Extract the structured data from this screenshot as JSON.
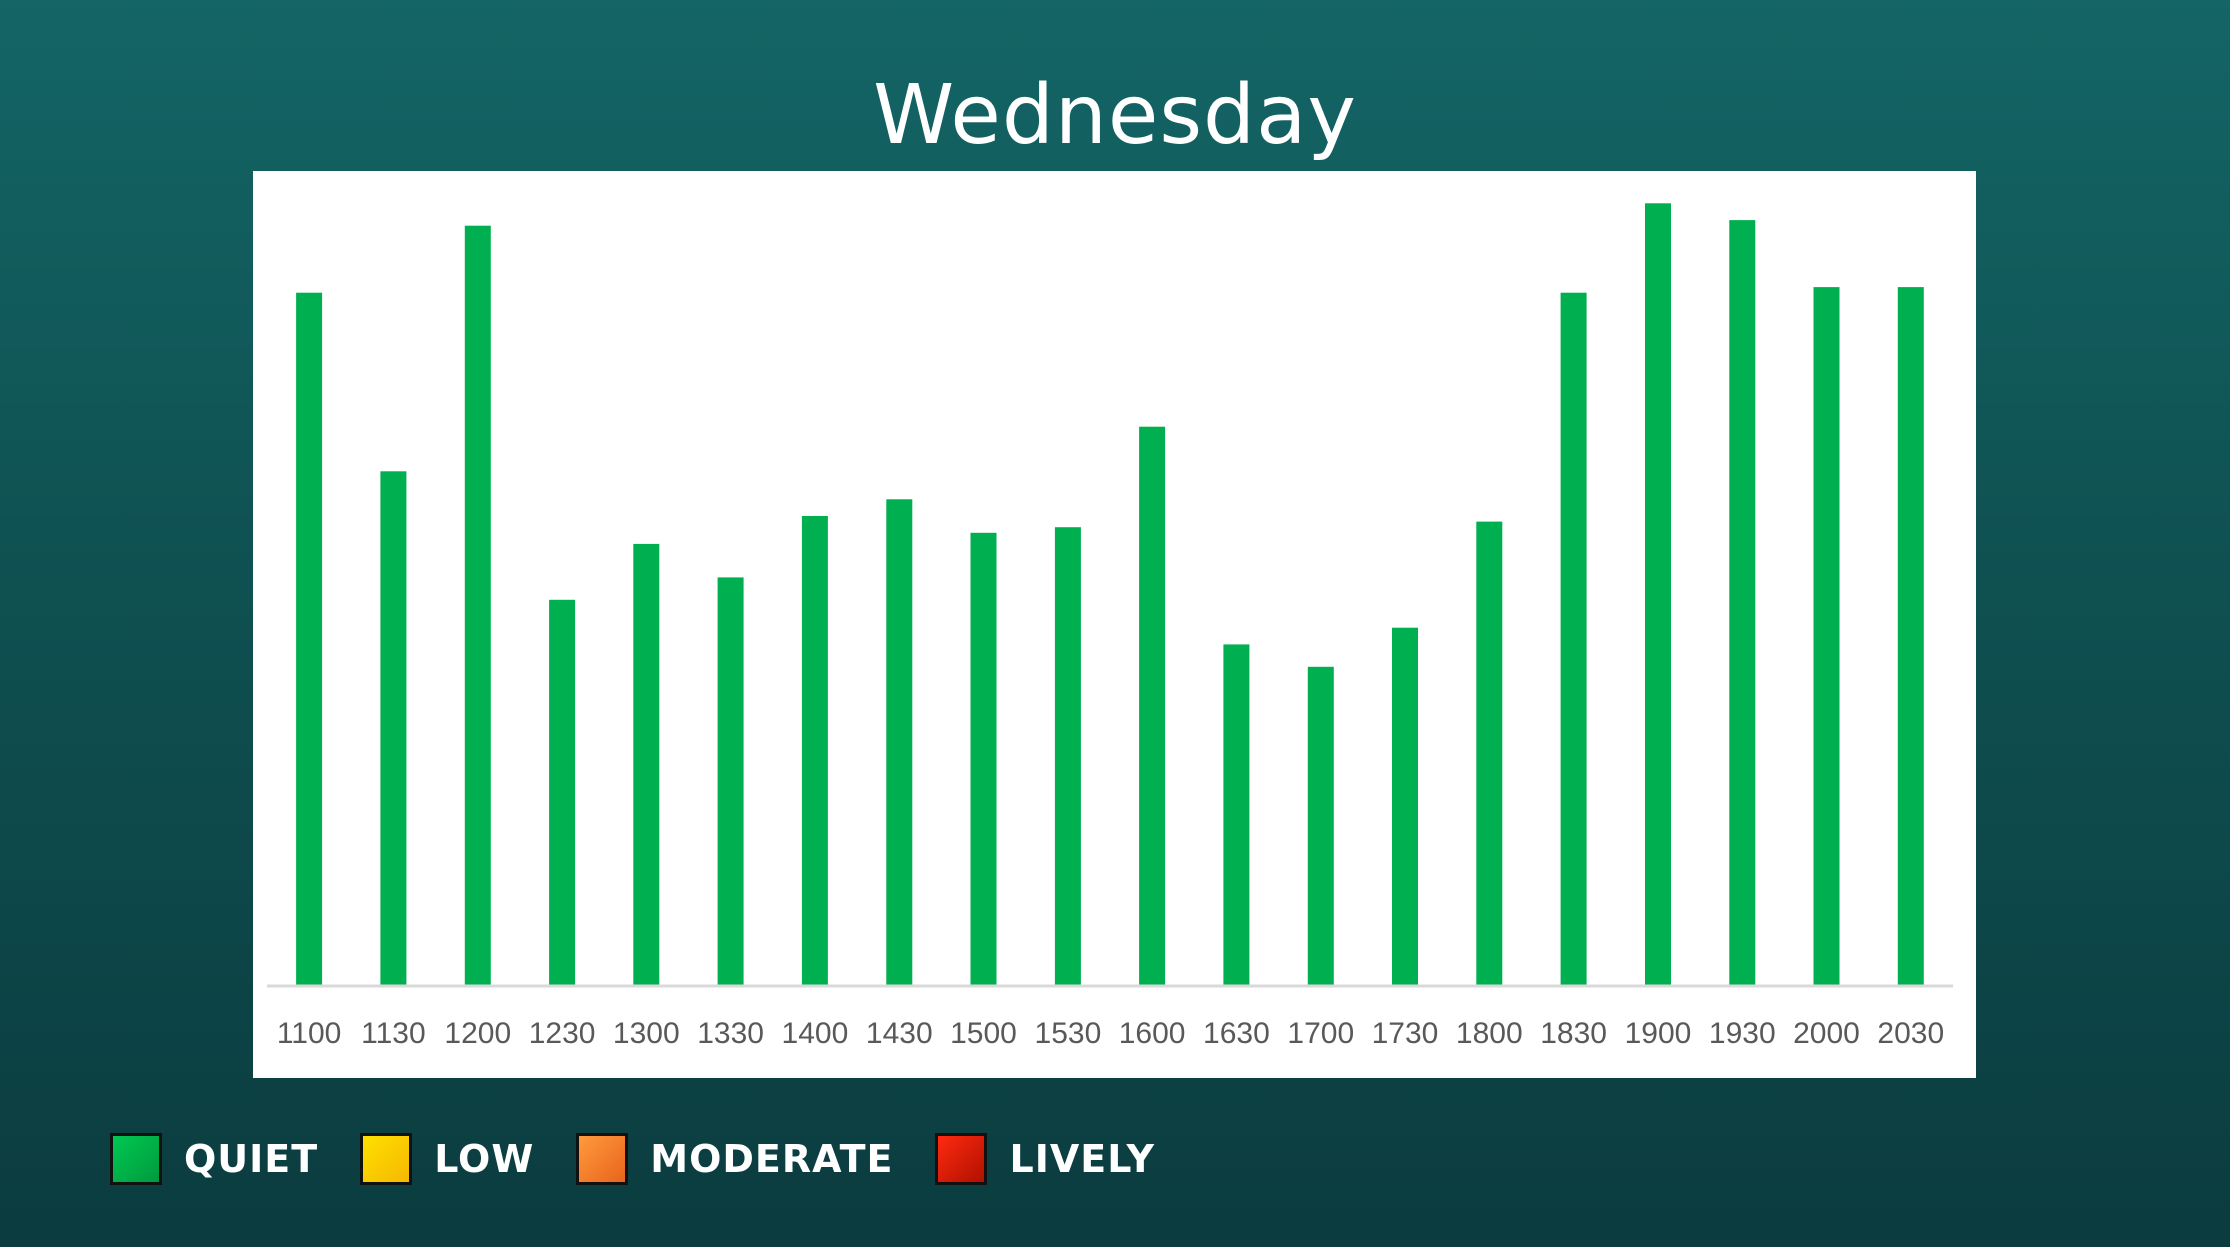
{
  "chart_data": {
    "type": "bar",
    "title": "Wednesday",
    "categories": [
      "1100",
      "1130",
      "1200",
      "1230",
      "1300",
      "1330",
      "1400",
      "1430",
      "1500",
      "1530",
      "1600",
      "1630",
      "1700",
      "1730",
      "1800",
      "1830",
      "1900",
      "1930",
      "2000",
      "2030"
    ],
    "values": [
      62,
      46,
      68,
      34.5,
      39.5,
      36.5,
      42,
      43.5,
      40.5,
      41,
      50,
      30.5,
      28.5,
      32,
      41.5,
      62,
      70,
      68.5,
      62.5,
      62.5
    ],
    "ylim": [
      0,
      72
    ],
    "grid": false,
    "bar_color": "#00b050",
    "axis_color": "#d9d9d9"
  },
  "legend": {
    "items": [
      {
        "label": "QUIET",
        "color": "#00c853",
        "color_end": "#009a3e"
      },
      {
        "label": "LOW",
        "color": "#ffe000",
        "color_end": "#f5b800"
      },
      {
        "label": "MODERATE",
        "color": "#ff9a3c",
        "color_end": "#e8641c"
      },
      {
        "label": "LIVELY",
        "color": "#ff2a10",
        "color_end": "#b01000"
      }
    ]
  }
}
